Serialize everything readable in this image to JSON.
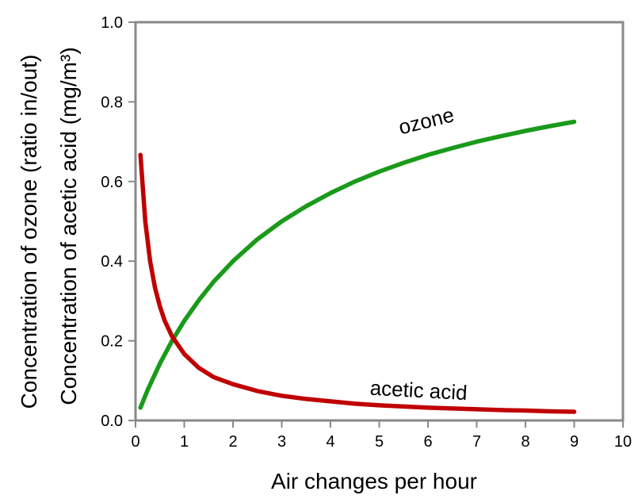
{
  "chart_data": {
    "type": "line",
    "xlabel": "Air changes per hour",
    "ylabel_lines": [
      "Concentration of ozone (ratio in/out)",
      "Concentration of acetic acid (mg/m³)"
    ],
    "xlim": [
      0,
      10
    ],
    "ylim": [
      0,
      1.0
    ],
    "xticks": [
      "0",
      "1",
      "2",
      "3",
      "4",
      "5",
      "6",
      "7",
      "8",
      "9",
      "10"
    ],
    "yticks": [
      "0.0",
      "0.2",
      "0.4",
      "0.6",
      "0.8",
      "1.0"
    ],
    "grid": false,
    "series": [
      {
        "name": "ozone",
        "color": "#1a9a1a",
        "x": [
          0.1,
          0.25,
          0.5,
          0.75,
          1.0,
          1.3,
          1.6,
          2.0,
          2.5,
          3.0,
          3.5,
          4.0,
          4.5,
          5.0,
          5.5,
          6.0,
          6.5,
          7.0,
          7.5,
          8.0,
          8.5,
          9.0
        ],
        "y": [
          0.032,
          0.077,
          0.143,
          0.2,
          0.25,
          0.302,
          0.348,
          0.4,
          0.455,
          0.5,
          0.538,
          0.571,
          0.6,
          0.625,
          0.647,
          0.667,
          0.684,
          0.7,
          0.714,
          0.727,
          0.739,
          0.75
        ]
      },
      {
        "name": "acetic acid",
        "color": "#c00000",
        "x": [
          0.1,
          0.2,
          0.3,
          0.4,
          0.5,
          0.6,
          0.75,
          1.0,
          1.3,
          1.6,
          2.0,
          2.5,
          3.0,
          3.5,
          4.0,
          4.5,
          5.0,
          5.5,
          6.0,
          6.5,
          7.0,
          7.5,
          8.0,
          8.5,
          9.0
        ],
        "y": [
          0.667,
          0.5,
          0.4,
          0.333,
          0.286,
          0.25,
          0.211,
          0.167,
          0.132,
          0.109,
          0.091,
          0.074,
          0.062,
          0.054,
          0.048,
          0.042,
          0.038,
          0.035,
          0.032,
          0.03,
          0.028,
          0.026,
          0.025,
          0.023,
          0.022
        ]
      }
    ],
    "annotations": [
      {
        "text": "ozone",
        "series": "ozone",
        "x": 6.0,
        "y": 0.735,
        "angle": -14
      },
      {
        "text": "acetic acid",
        "series": "acetic acid",
        "x": 5.8,
        "y": 0.058,
        "angle": 3
      }
    ]
  }
}
